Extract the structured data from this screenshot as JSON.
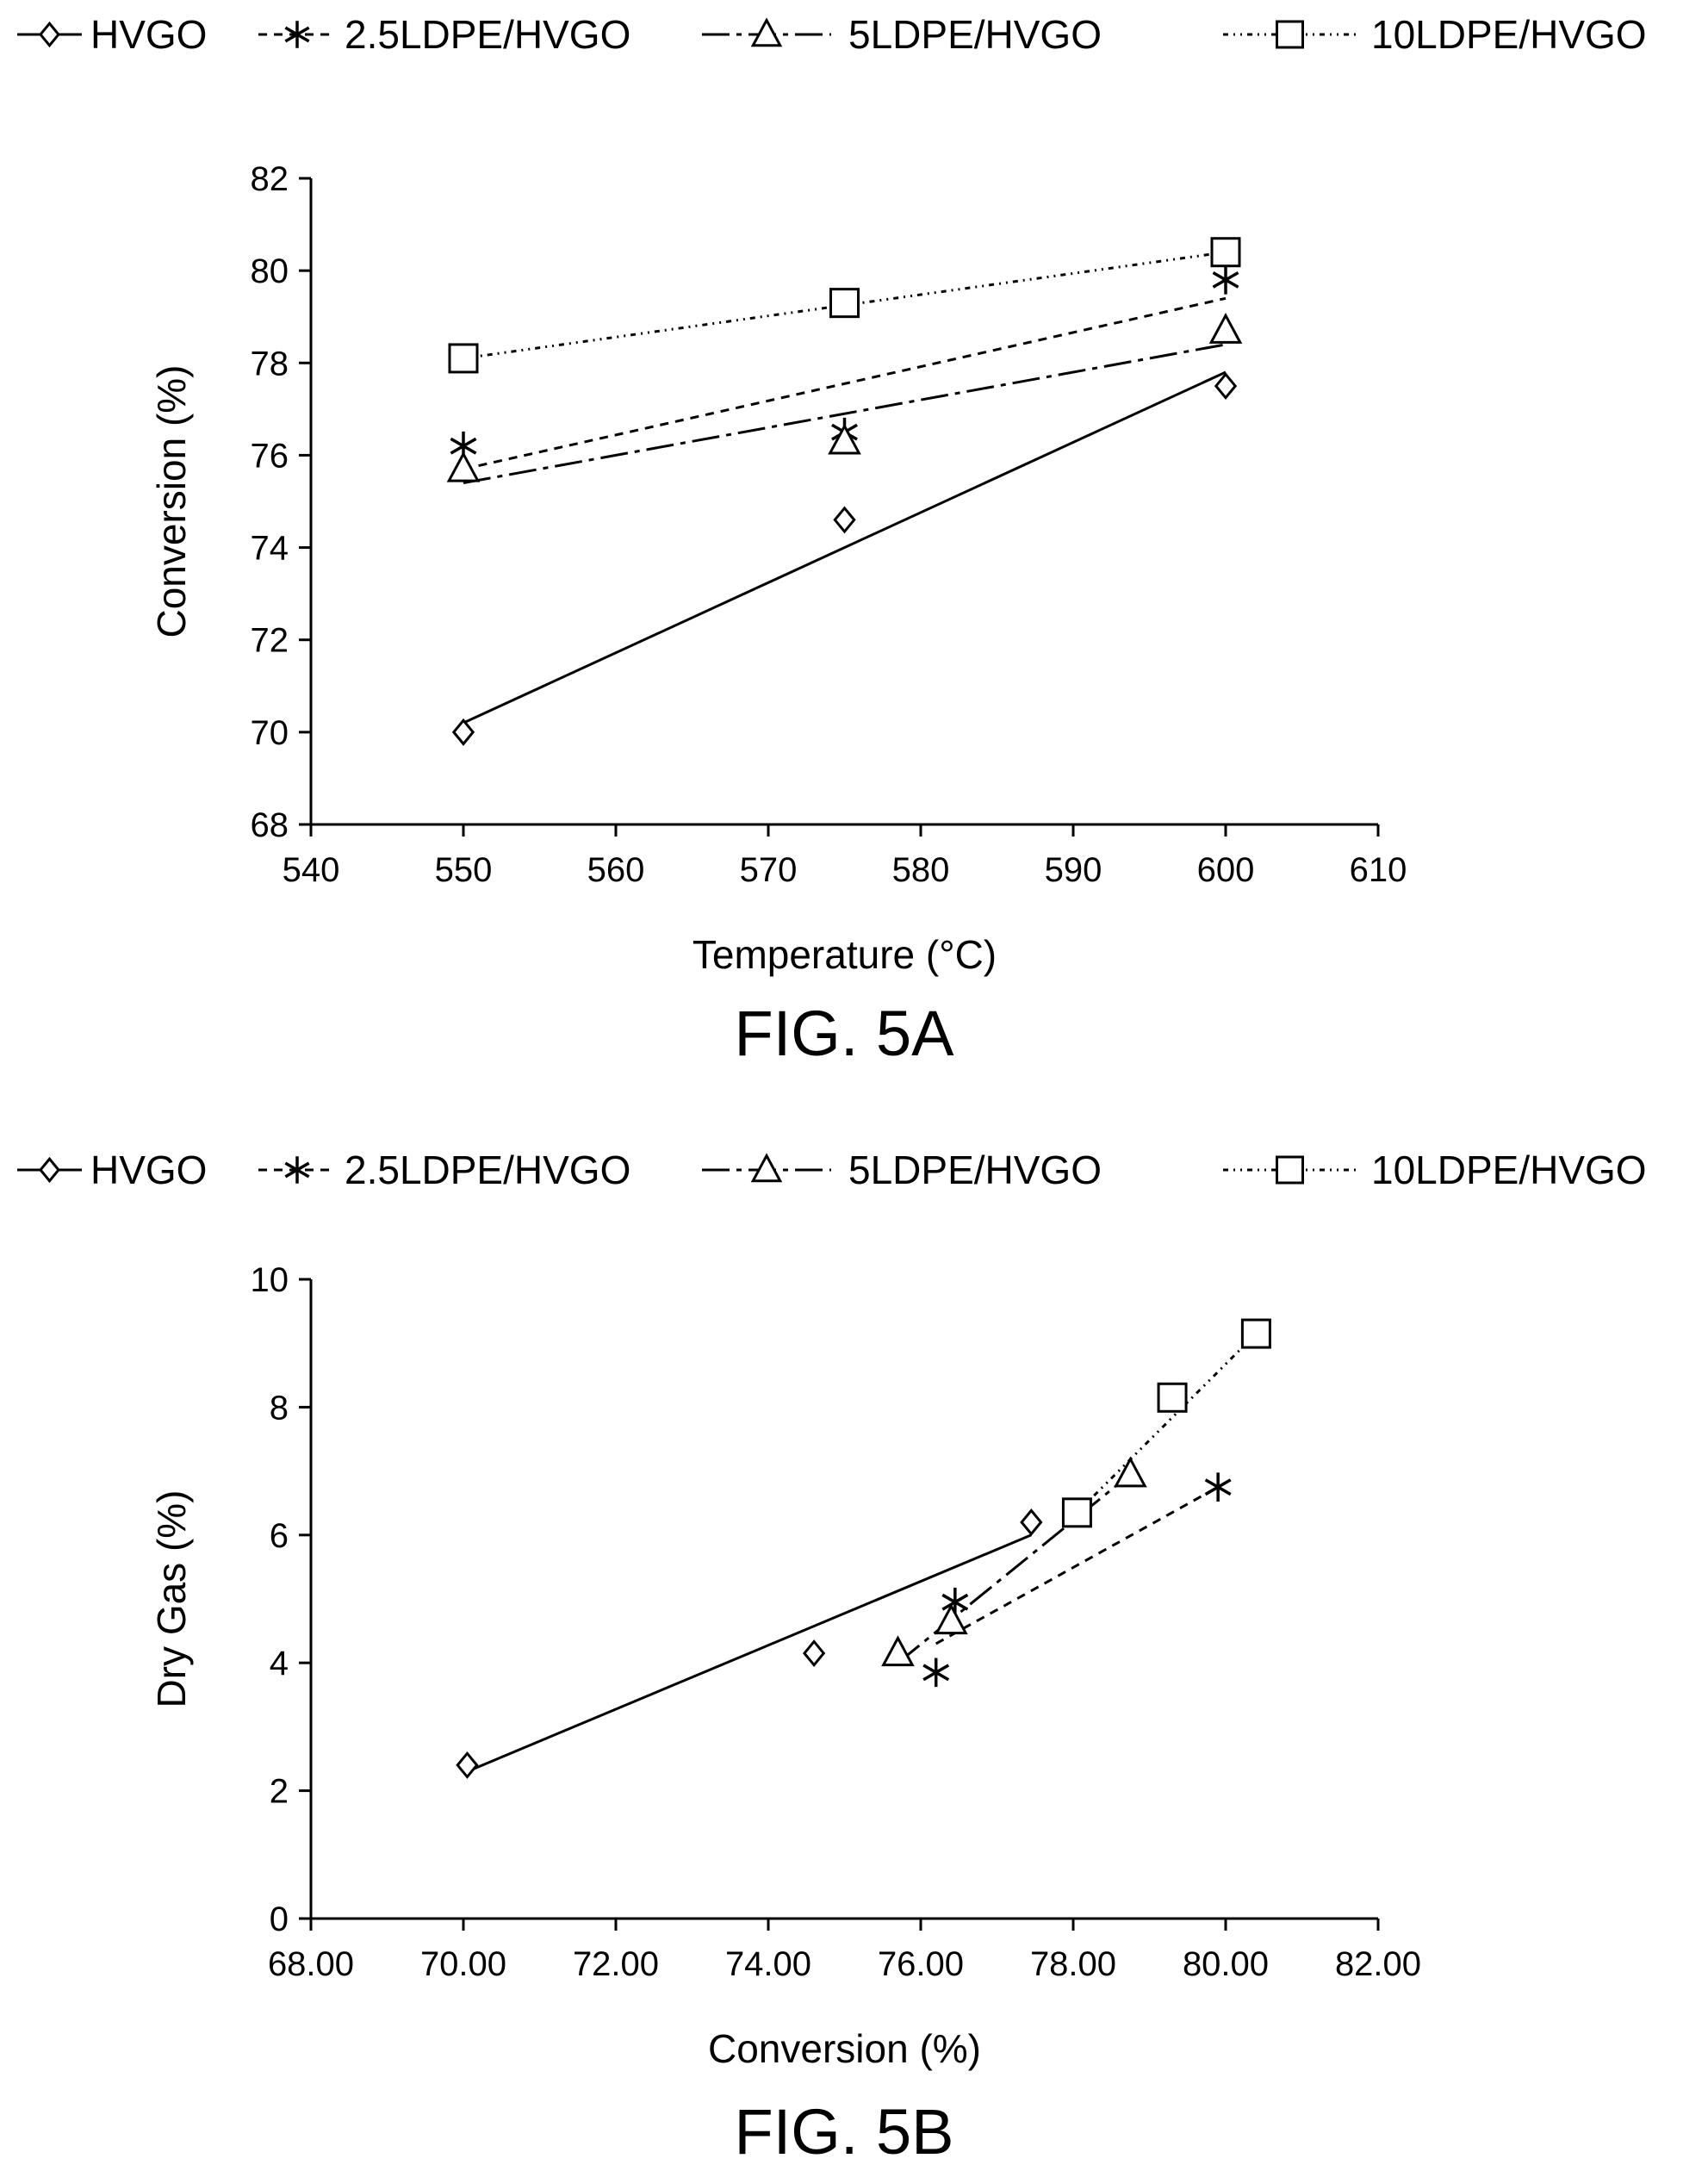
{
  "chart_data": [
    {
      "type": "line",
      "figure_label": "FIG. 5A",
      "title": "",
      "xlabel": "Temperature (°C)",
      "ylabel": "Conversion (%)",
      "xlim": [
        540,
        610
      ],
      "ylim": [
        68,
        82
      ],
      "xticks": [
        540,
        550,
        560,
        570,
        580,
        590,
        600,
        610
      ],
      "yticks": [
        68,
        70,
        72,
        74,
        76,
        78,
        80,
        82
      ],
      "x_decimals": 0,
      "y_decimals": 0,
      "grid": false,
      "legend_position": "top",
      "series": [
        {
          "name": "HVGO",
          "marker": "diamond",
          "dash": "",
          "points": [
            [
              550,
              70.0
            ],
            [
              575,
              74.6
            ],
            [
              600,
              77.5
            ]
          ],
          "trend": [
            [
              550,
              70.2
            ],
            [
              600,
              77.8
            ]
          ]
        },
        {
          "name": "2.5LDPE/HVGO",
          "marker": "star",
          "dash": "10,8",
          "points": [
            [
              550,
              76.2
            ],
            [
              575,
              76.5
            ],
            [
              600,
              79.8
            ]
          ],
          "trend": [
            [
              550,
              75.7
            ],
            [
              600,
              79.4
            ]
          ]
        },
        {
          "name": "5LDPE/HVGO",
          "marker": "triangle",
          "dash": "32,8,6,8",
          "points": [
            [
              550,
              75.7
            ],
            [
              575,
              76.3
            ],
            [
              600,
              78.7
            ]
          ],
          "trend": [
            [
              550,
              75.4
            ],
            [
              600,
              78.4
            ]
          ]
        },
        {
          "name": "10LDPE/HVGO",
          "marker": "square",
          "dash": "6,6,2,6,2,6",
          "points": [
            [
              550,
              78.1
            ],
            [
              575,
              79.3
            ],
            [
              600,
              80.4
            ]
          ],
          "trend": [
            [
              550,
              78.1
            ],
            [
              600,
              80.4
            ]
          ]
        }
      ]
    },
    {
      "type": "line",
      "figure_label": "FIG. 5B",
      "title": "",
      "xlabel": "Conversion (%)",
      "ylabel": "Dry Gas (%)",
      "xlim": [
        68,
        82
      ],
      "ylim": [
        0,
        10
      ],
      "xticks": [
        68,
        70,
        72,
        74,
        76,
        78,
        80,
        82
      ],
      "yticks": [
        0,
        2,
        4,
        6,
        8,
        10
      ],
      "x_decimals": 2,
      "y_decimals": 0,
      "grid": false,
      "legend_position": "top",
      "series": [
        {
          "name": "HVGO",
          "marker": "diamond",
          "dash": "",
          "points": [
            [
              70.05,
              2.4
            ],
            [
              74.6,
              4.15
            ],
            [
              77.45,
              6.2
            ]
          ],
          "trend": [
            [
              70.05,
              2.3
            ],
            [
              77.45,
              6.0
            ]
          ]
        },
        {
          "name": "2.5LDPE/HVGO",
          "marker": "star",
          "dash": "10,8",
          "points": [
            [
              76.2,
              3.85
            ],
            [
              76.45,
              4.95
            ],
            [
              79.9,
              6.75
            ]
          ],
          "trend": [
            [
              76.2,
              4.3
            ],
            [
              79.9,
              6.75
            ]
          ]
        },
        {
          "name": "5LDPE/HVGO",
          "marker": "triangle",
          "dash": "32,8,6,8",
          "points": [
            [
              75.7,
              4.15
            ],
            [
              76.4,
              4.65
            ],
            [
              78.75,
              6.95
            ]
          ],
          "trend": [
            [
              75.7,
              4.0
            ],
            [
              78.75,
              6.95
            ]
          ]
        },
        {
          "name": "10LDPE/HVGO",
          "marker": "square",
          "dash": "6,6,2,6,2,6",
          "points": [
            [
              78.05,
              6.35
            ],
            [
              79.3,
              8.15
            ],
            [
              80.4,
              9.15
            ]
          ],
          "trend": [
            [
              78.05,
              6.35
            ],
            [
              80.4,
              9.15
            ]
          ]
        }
      ]
    }
  ]
}
